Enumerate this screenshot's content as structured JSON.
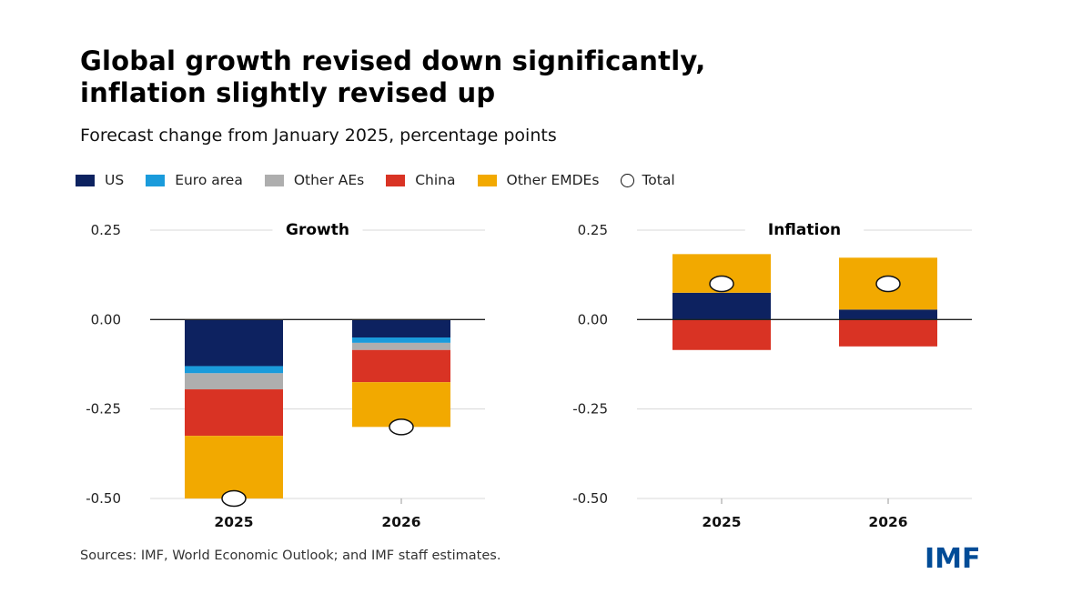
{
  "title_lines": [
    "Global growth revised down significantly,",
    "inflation slightly revised up"
  ],
  "subtitle": "Forecast change from January 2025, percentage points",
  "legend": [
    {
      "label": "US",
      "color": "#0D2260",
      "shape": "square"
    },
    {
      "label": "Euro area",
      "color": "#1A9BDB",
      "shape": "square"
    },
    {
      "label": "Other AEs",
      "color": "#AEAEAE",
      "shape": "square"
    },
    {
      "label": "China",
      "color": "#D93324",
      "shape": "square"
    },
    {
      "label": "Other EMDEs",
      "color": "#F2A900",
      "shape": "square"
    },
    {
      "label": "Total",
      "color": "#FFFFFF",
      "shape": "circle"
    }
  ],
  "chart_data": [
    {
      "type": "bar",
      "stacked": true,
      "title": "Growth",
      "categories": [
        "2025",
        "2026"
      ],
      "ylim": [
        -0.5,
        0.25
      ],
      "yticks": [
        0.25,
        0.0,
        -0.25,
        -0.5
      ],
      "ytick_labels": [
        "0.25",
        "0.00",
        "-0.25",
        "-0.50"
      ],
      "series": [
        {
          "name": "US",
          "color": "#0D2260",
          "values": [
            -0.13,
            -0.05
          ]
        },
        {
          "name": "Euro area",
          "color": "#1A9BDB",
          "values": [
            -0.02,
            -0.015
          ]
        },
        {
          "name": "Other AEs",
          "color": "#AEAEAE",
          "values": [
            -0.045,
            -0.02
          ]
        },
        {
          "name": "China",
          "color": "#D93324",
          "values": [
            -0.13,
            -0.09
          ]
        },
        {
          "name": "Other EMDEs",
          "color": "#F2A900",
          "values": [
            -0.175,
            -0.125
          ]
        }
      ],
      "totals": [
        -0.5,
        -0.3
      ]
    },
    {
      "type": "bar",
      "stacked": true,
      "title": "Inflation",
      "categories": [
        "2025",
        "2026"
      ],
      "ylim": [
        -0.5,
        0.25
      ],
      "yticks": [
        0.25,
        0.0,
        -0.25,
        -0.5
      ],
      "ytick_labels": [
        "0.25",
        "0.00",
        "-0.25",
        "-0.50"
      ],
      "series": [
        {
          "name": "US",
          "color": "#0D2260",
          "values": [
            0.075,
            0.028
          ]
        },
        {
          "name": "Euro area",
          "color": "#1A9BDB",
          "values": [
            0,
            0
          ]
        },
        {
          "name": "Other AEs",
          "color": "#AEAEAE",
          "values": [
            0,
            0
          ]
        },
        {
          "name": "China",
          "color": "#D93324",
          "values": [
            -0.085,
            -0.075
          ]
        },
        {
          "name": "Other EMDEs",
          "color": "#F2A900",
          "values": [
            0.108,
            0.145
          ]
        }
      ],
      "totals": [
        0.1,
        0.1
      ]
    }
  ],
  "source": "Sources: IMF, World Economic Outlook; and IMF staff estimates.",
  "logo_text": "IMF"
}
